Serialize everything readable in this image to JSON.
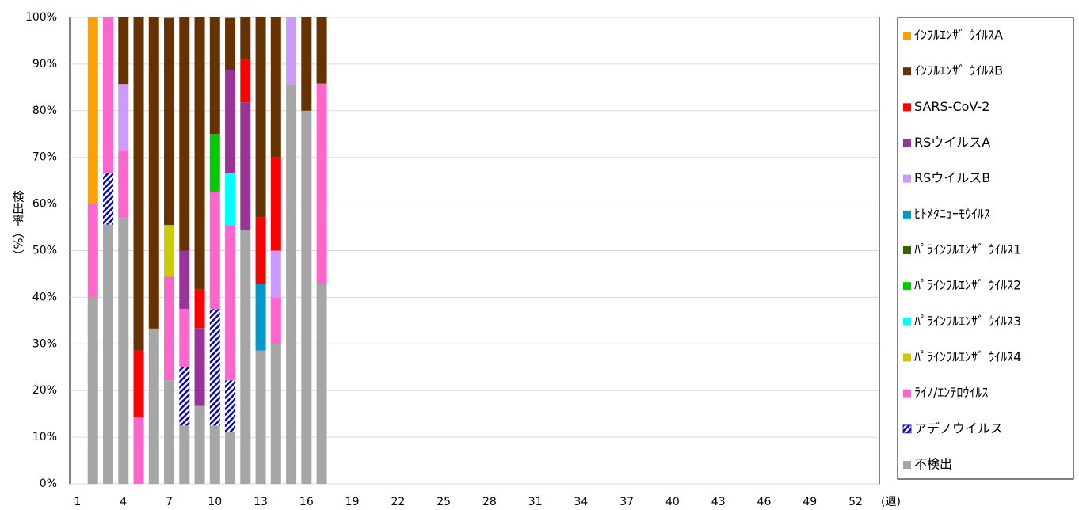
{
  "chart_data": {
    "type": "stacked_bar",
    "y_label": "検出率（%）",
    "x_label": "(週)",
    "categories": [
      1,
      null,
      null,
      4,
      null,
      null,
      7,
      null,
      null,
      10,
      null,
      null,
      13,
      null,
      null,
      16,
      null,
      null,
      19,
      null,
      null,
      22,
      null,
      null,
      25,
      null,
      null,
      28,
      null,
      null,
      31,
      null,
      null,
      34,
      null,
      null,
      37,
      null,
      null,
      40,
      null,
      null,
      43,
      null,
      null,
      46,
      null,
      null,
      49,
      null,
      null,
      52
    ],
    "ylim": [
      0,
      100
    ],
    "yticks": [
      {
        "value": 0,
        "label": "0%"
      },
      {
        "value": 10,
        "label": "10%"
      },
      {
        "value": 20,
        "label": "20%"
      },
      {
        "value": 30,
        "label": "30%"
      },
      {
        "value": 40,
        "label": "40%"
      },
      {
        "value": 50,
        "label": "50%"
      },
      {
        "value": 60,
        "label": "60%"
      },
      {
        "value": 70,
        "label": "70%"
      },
      {
        "value": 80,
        "label": "80%"
      },
      {
        "value": 90,
        "label": "90%"
      },
      {
        "value": 100,
        "label": "100%"
      }
    ],
    "grid": true,
    "legend": "right",
    "series": [
      {
        "name": "ｲﾝﾌﾙｴﾝｻﾞ ｳｲﾙｽA",
        "color": "#ff9f00",
        "values": [
          null,
          40,
          null,
          null,
          null,
          null,
          null,
          null,
          null,
          null,
          null,
          null,
          null,
          null,
          null,
          null,
          null,
          null,
          null,
          null,
          null,
          null,
          null,
          null,
          null,
          null,
          null,
          null,
          null,
          null,
          null,
          null,
          null,
          null,
          null,
          null,
          null,
          null,
          null,
          null,
          null,
          null,
          null,
          null,
          null,
          null,
          null,
          null,
          null,
          null,
          null,
          null
        ]
      },
      {
        "name": "ｲﾝﾌﾙｴﾝｻﾞ ｳｲﾙｽB",
        "color": "#663300",
        "values": [
          null,
          null,
          null,
          14.3,
          71.4,
          66.7,
          44.4,
          50,
          58.3,
          25,
          11.1,
          9.1,
          42.9,
          30,
          null,
          20,
          14.3,
          null,
          null,
          null,
          null,
          null,
          null,
          null,
          null,
          null,
          null,
          null,
          null,
          null,
          null,
          null,
          null,
          null,
          null,
          null,
          null,
          null,
          null,
          null,
          null,
          null,
          null,
          null,
          null,
          null,
          null,
          null,
          null,
          null,
          null,
          null
        ]
      },
      {
        "name": "SARS-CoV-2",
        "color": "#ff0000",
        "values": [
          null,
          null,
          null,
          null,
          14.3,
          null,
          null,
          null,
          8.3,
          null,
          null,
          9.1,
          14.3,
          20,
          null,
          null,
          null,
          null,
          null,
          null,
          null,
          null,
          null,
          null,
          null,
          null,
          null,
          null,
          null,
          null,
          null,
          null,
          null,
          null,
          null,
          null,
          null,
          null,
          null,
          null,
          null,
          null,
          null,
          null,
          null,
          null,
          null,
          null,
          null,
          null,
          null,
          null
        ]
      },
      {
        "name": "RSウイルスA",
        "color": "#993399",
        "values": [
          null,
          null,
          null,
          null,
          null,
          null,
          null,
          12.5,
          16.7,
          null,
          22.2,
          27.3,
          null,
          null,
          null,
          null,
          null,
          null,
          null,
          null,
          null,
          null,
          null,
          null,
          null,
          null,
          null,
          null,
          null,
          null,
          null,
          null,
          null,
          null,
          null,
          null,
          null,
          null,
          null,
          null,
          null,
          null,
          null,
          null,
          null,
          null,
          null,
          null,
          null,
          null,
          null,
          null
        ]
      },
      {
        "name": "RSウイルスB",
        "color": "#cc99ff",
        "values": [
          null,
          null,
          null,
          14.3,
          null,
          null,
          null,
          null,
          null,
          null,
          null,
          null,
          null,
          10,
          14.3,
          null,
          null,
          null,
          null,
          null,
          null,
          null,
          null,
          null,
          null,
          null,
          null,
          null,
          null,
          null,
          null,
          null,
          null,
          null,
          null,
          null,
          null,
          null,
          null,
          null,
          null,
          null,
          null,
          null,
          null,
          null,
          null,
          null,
          null,
          null,
          null,
          null
        ]
      },
      {
        "name": "ﾋﾄﾒﾀﾆｭｰﾓｳｲﾙｽ",
        "color": "#0099cc",
        "values": [
          null,
          null,
          null,
          null,
          null,
          null,
          null,
          null,
          null,
          null,
          null,
          null,
          14.3,
          null,
          null,
          null,
          null,
          null,
          null,
          null,
          null,
          null,
          null,
          null,
          null,
          null,
          null,
          null,
          null,
          null,
          null,
          null,
          null,
          null,
          null,
          null,
          null,
          null,
          null,
          null,
          null,
          null,
          null,
          null,
          null,
          null,
          null,
          null,
          null,
          null,
          null,
          null
        ]
      },
      {
        "name": "ﾊﾟﾗｲﾝﾌﾙｴﾝｻﾞ ｳｲﾙｽ1",
        "color": "#336600",
        "values": [
          null,
          null,
          null,
          null,
          null,
          null,
          null,
          null,
          null,
          null,
          null,
          null,
          null,
          null,
          null,
          null,
          null,
          null,
          null,
          null,
          null,
          null,
          null,
          null,
          null,
          null,
          null,
          null,
          null,
          null,
          null,
          null,
          null,
          null,
          null,
          null,
          null,
          null,
          null,
          null,
          null,
          null,
          null,
          null,
          null,
          null,
          null,
          null,
          null,
          null,
          null,
          null
        ]
      },
      {
        "name": "ﾊﾟﾗｲﾝﾌﾙｴﾝｻﾞ ｳｲﾙｽ2",
        "color": "#00cc00",
        "values": [
          null,
          null,
          null,
          null,
          null,
          null,
          null,
          null,
          null,
          12.5,
          null,
          null,
          null,
          null,
          null,
          null,
          null,
          null,
          null,
          null,
          null,
          null,
          null,
          null,
          null,
          null,
          null,
          null,
          null,
          null,
          null,
          null,
          null,
          null,
          null,
          null,
          null,
          null,
          null,
          null,
          null,
          null,
          null,
          null,
          null,
          null,
          null,
          null,
          null,
          null,
          null,
          null
        ]
      },
      {
        "name": "ﾊﾟﾗｲﾝﾌﾙｴﾝｻﾞ ｳｲﾙｽ3",
        "color": "#00ffff",
        "values": [
          null,
          null,
          null,
          null,
          null,
          null,
          null,
          null,
          null,
          null,
          11.1,
          null,
          null,
          null,
          null,
          null,
          null,
          null,
          null,
          null,
          null,
          null,
          null,
          null,
          null,
          null,
          null,
          null,
          null,
          null,
          null,
          null,
          null,
          null,
          null,
          null,
          null,
          null,
          null,
          null,
          null,
          null,
          null,
          null,
          null,
          null,
          null,
          null,
          null,
          null,
          null,
          null
        ]
      },
      {
        "name": "ﾊﾟﾗｲﾝﾌﾙｴﾝｻﾞ ｳｲﾙｽ4",
        "color": "#cccc00",
        "values": [
          null,
          null,
          null,
          null,
          null,
          null,
          11.1,
          null,
          null,
          null,
          null,
          null,
          null,
          null,
          null,
          null,
          null,
          null,
          null,
          null,
          null,
          null,
          null,
          null,
          null,
          null,
          null,
          null,
          null,
          null,
          null,
          null,
          null,
          null,
          null,
          null,
          null,
          null,
          null,
          null,
          null,
          null,
          null,
          null,
          null,
          null,
          null,
          null,
          null,
          null,
          null,
          null
        ]
      },
      {
        "name": "ﾗｲﾉ/ｴﾝﾃﾛｳｲﾙｽ",
        "color": "#ff66cc",
        "values": [
          null,
          20,
          33.3,
          14.3,
          14.3,
          null,
          22.2,
          12.5,
          null,
          25,
          33.3,
          null,
          null,
          10,
          null,
          null,
          42.9,
          null,
          null,
          null,
          null,
          null,
          null,
          null,
          null,
          null,
          null,
          null,
          null,
          null,
          null,
          null,
          null,
          null,
          null,
          null,
          null,
          null,
          null,
          null,
          null,
          null,
          null,
          null,
          null,
          null,
          null,
          null,
          null,
          null,
          null,
          null
        ]
      },
      {
        "name": "アデノウイルス",
        "color": "#0000cc",
        "pattern": "hatch",
        "values": [
          null,
          null,
          11.1,
          null,
          null,
          null,
          null,
          12.5,
          null,
          25,
          11.1,
          null,
          null,
          null,
          null,
          null,
          null,
          null,
          null,
          null,
          null,
          null,
          null,
          null,
          null,
          null,
          null,
          null,
          null,
          null,
          null,
          null,
          null,
          null,
          null,
          null,
          null,
          null,
          null,
          null,
          null,
          null,
          null,
          null,
          null,
          null,
          null,
          null,
          null,
          null,
          null,
          null
        ]
      },
      {
        "name": "不検出",
        "color": "#a6a6a6",
        "values": [
          null,
          40,
          55.6,
          57.1,
          null,
          33.3,
          22.2,
          12.5,
          16.7,
          12.5,
          11.1,
          54.5,
          28.6,
          30,
          85.7,
          80,
          42.9,
          null,
          null,
          null,
          null,
          null,
          null,
          null,
          null,
          null,
          null,
          null,
          null,
          null,
          null,
          null,
          null,
          null,
          null,
          null,
          null,
          null,
          null,
          null,
          null,
          null,
          null,
          null,
          null,
          null,
          null,
          null,
          null,
          null,
          null,
          null
        ]
      }
    ]
  }
}
